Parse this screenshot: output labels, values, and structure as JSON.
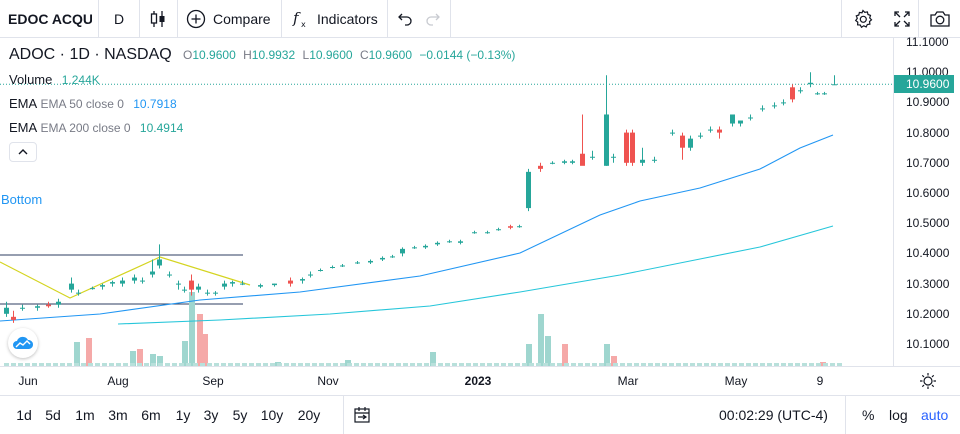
{
  "toolbar": {
    "symbol": "EDOC ACQU",
    "interval": "D",
    "compare_label": "Compare",
    "indicators_label": "Indicators",
    "icons": [
      "candles-icon",
      "plus-circle-icon",
      "fx-icon",
      "undo-icon",
      "redo-icon",
      "gear-icon",
      "fullscreen-icon",
      "camera-icon"
    ]
  },
  "legend": {
    "title": "ADOC · 1D · NASDAQ",
    "ohlc": [
      {
        "k": "O",
        "v": "10.9600"
      },
      {
        "k": "H",
        "v": "10.9932"
      },
      {
        "k": "L",
        "v": "10.9600"
      },
      {
        "k": "C",
        "v": "10.9600"
      }
    ],
    "change": "−0.0144 (−0.13%)",
    "volume_label": "Volume",
    "volume_value": "1.244K",
    "ema50_label": "EMA 50 close 0",
    "ema50_value": "10.7918",
    "ema200_label": "EMA 200 close 0",
    "ema200_value": "10.4914"
  },
  "bottom_annotation": "Bottom",
  "price_axis": {
    "ticks": [
      "11.1000",
      "11.0000",
      "10.9000",
      "10.8000",
      "10.7000",
      "10.6000",
      "10.5000",
      "10.4000",
      "10.3000",
      "10.2000",
      "10.1000"
    ],
    "last_price": "10.9600"
  },
  "time_axis": {
    "labels": [
      {
        "text": "Jun",
        "bold": false
      },
      {
        "text": "Aug",
        "bold": false
      },
      {
        "text": "Sep",
        "bold": false
      },
      {
        "text": "Nov",
        "bold": false
      },
      {
        "text": "2023",
        "bold": true
      },
      {
        "text": "Mar",
        "bold": false
      },
      {
        "text": "May",
        "bold": false
      },
      {
        "text": "9",
        "bold": false
      }
    ]
  },
  "bottom_bar": {
    "ranges": [
      "1d",
      "5d",
      "1m",
      "3m",
      "6m",
      "1y",
      "3y",
      "5y",
      "10y",
      "20y"
    ],
    "clock": "00:02:29 (UTC-4)",
    "percent_label": "%",
    "log_label": "log",
    "auto_label": "auto"
  },
  "colors": {
    "up": "#26a69a",
    "down": "#ef5350",
    "ema50": "#2196f3",
    "ema200": "#26c6da",
    "pattern": "#d4d420",
    "accent": "#2962ff"
  }
}
